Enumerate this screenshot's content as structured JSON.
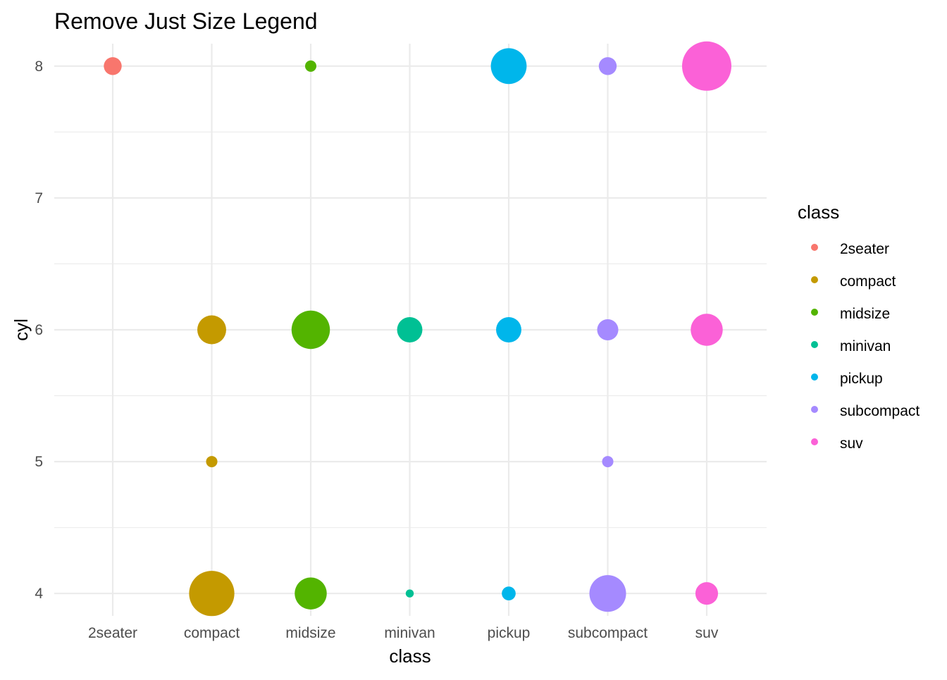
{
  "chart_data": {
    "type": "scatter",
    "title": "Remove Just Size Legend",
    "xlabel": "class",
    "ylabel": "cyl",
    "categories": [
      "2seater",
      "compact",
      "midsize",
      "minivan",
      "pickup",
      "subcompact",
      "suv"
    ],
    "y_ticks": [
      4,
      5,
      6,
      7,
      8
    ],
    "ylim": [
      3.83,
      8.17
    ],
    "grid": true,
    "legend": {
      "title": "class",
      "placement": "right",
      "entries": [
        "2seater",
        "compact",
        "midsize",
        "minivan",
        "pickup",
        "subcompact",
        "suv"
      ]
    },
    "colors": {
      "2seater": "#F8766D",
      "compact": "#C49A00",
      "midsize": "#53B400",
      "minivan": "#00C094",
      "pickup": "#00B6EB",
      "subcompact": "#A58AFF",
      "suv": "#FB61D7"
    },
    "points": [
      {
        "x": "2seater",
        "y": 8,
        "n": 5
      },
      {
        "x": "compact",
        "y": 4,
        "n": 32
      },
      {
        "x": "compact",
        "y": 5,
        "n": 2
      },
      {
        "x": "compact",
        "y": 6,
        "n": 13
      },
      {
        "x": "midsize",
        "y": 4,
        "n": 16
      },
      {
        "x": "midsize",
        "y": 6,
        "n": 23
      },
      {
        "x": "midsize",
        "y": 8,
        "n": 2
      },
      {
        "x": "minivan",
        "y": 4,
        "n": 1
      },
      {
        "x": "minivan",
        "y": 6,
        "n": 10
      },
      {
        "x": "pickup",
        "y": 4,
        "n": 3
      },
      {
        "x": "pickup",
        "y": 6,
        "n": 10
      },
      {
        "x": "pickup",
        "y": 8,
        "n": 20
      },
      {
        "x": "subcompact",
        "y": 4,
        "n": 21
      },
      {
        "x": "subcompact",
        "y": 5,
        "n": 2
      },
      {
        "x": "subcompact",
        "y": 6,
        "n": 7
      },
      {
        "x": "subcompact",
        "y": 8,
        "n": 5
      },
      {
        "x": "suv",
        "y": 4,
        "n": 8
      },
      {
        "x": "suv",
        "y": 6,
        "n": 16
      },
      {
        "x": "suv",
        "y": 8,
        "n": 38
      }
    ]
  }
}
